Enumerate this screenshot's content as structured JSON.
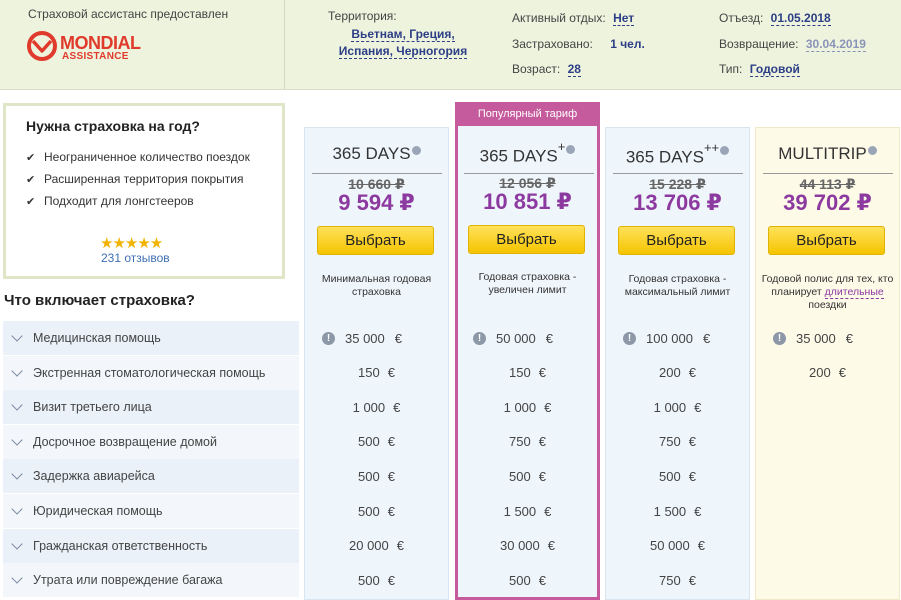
{
  "header": {
    "assistance_label": "Страховой ассистанс предоставлен",
    "logo_name": "MONDIAL",
    "logo_sub": "ASSISTANCE",
    "territory_label": "Территория:",
    "territory_value": [
      "Вьетнам, Греция,",
      "Испания, Черногория"
    ],
    "active_rest_label": "Активный отдых:",
    "active_rest_value": "Нет",
    "insured_label": "Застраховано:",
    "insured_value": "1 чел.",
    "age_label": "Возраст:",
    "age_value": "28",
    "departure_label": "Отъезд:",
    "departure_value": "01.05.2018",
    "return_label": "Возвращение:",
    "return_value": "30.04.2019",
    "type_label": "Тип:",
    "type_value": "Годовой",
    "colors": {
      "bg": "#eef3de",
      "link": "#2c3e86",
      "brand": "#e03a2c"
    }
  },
  "promo": {
    "title": "Нужна страховка на год?",
    "items": [
      "Неограниченное количество поездок",
      "Расширенная территория покрытия",
      "Подходит для лонгстееров"
    ],
    "rating": "★★★★★",
    "reviews": "231 отзывов"
  },
  "section_title": "Что включает страховка?",
  "plans": [
    {
      "name": "365 DAYS",
      "sup": "",
      "old_price": "10 660 ₽",
      "new_price": "9 594 ₽",
      "button": "Выбрать",
      "desc": "Минимальная годовая страховка",
      "popular": ""
    },
    {
      "name": "365 DAYS",
      "sup": "+",
      "old_price": "12 056 ₽",
      "new_price": "10 851 ₽",
      "button": "Выбрать",
      "desc": "Годовая страховка - увеличен лимит",
      "popular": "Популярный тариф"
    },
    {
      "name": "365 DAYS",
      "sup": "++",
      "old_price": "15 228 ₽",
      "new_price": "13 706 ₽",
      "button": "Выбрать",
      "desc": "Годовая страховка - максимальный лимит",
      "popular": ""
    },
    {
      "name": "MULTITRIP",
      "sup": "",
      "old_price": "44 113 ₽",
      "new_price": "39 702 ₽",
      "button": "Выбрать",
      "desc_a": "Годовой полис для тех, кто планирует",
      "desc_link": "длительные",
      "desc_b": "поездки",
      "popular": ""
    }
  ],
  "currency": "€",
  "coverage": [
    {
      "label": "Медицинская помощь",
      "values": [
        "35 000",
        "50 000",
        "100 000",
        "35 000"
      ],
      "info": true
    },
    {
      "label": "Экстренная стоматологическая помощь",
      "values": [
        "150",
        "150",
        "200",
        "200"
      ]
    },
    {
      "label": "Визит третьего лица",
      "values": [
        "1 000",
        "1 000",
        "1 000",
        ""
      ]
    },
    {
      "label": "Досрочное возвращение домой",
      "values": [
        "500",
        "750",
        "750",
        ""
      ]
    },
    {
      "label": "Задержка авиарейса",
      "values": [
        "500",
        "500",
        "500",
        ""
      ]
    },
    {
      "label": "Юридическая помощь",
      "values": [
        "500",
        "1 500",
        "1 500",
        ""
      ]
    },
    {
      "label": "Гражданская ответственность",
      "values": [
        "20 000",
        "30 000",
        "50 000",
        ""
      ]
    },
    {
      "label": "Утрата или повреждение багажа",
      "values": [
        "500",
        "500",
        "750",
        ""
      ]
    }
  ]
}
